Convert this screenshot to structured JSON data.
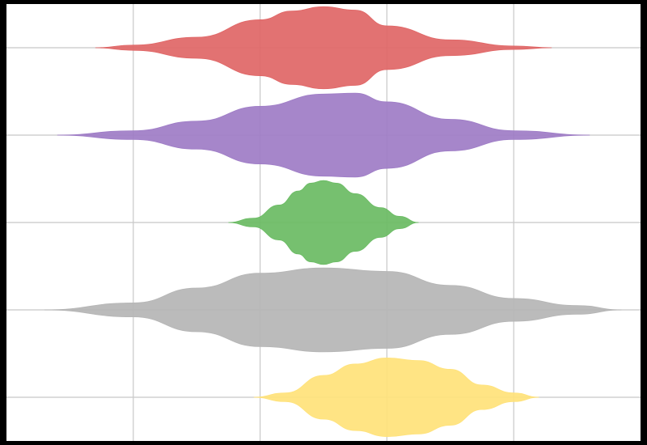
{
  "chart_data": {
    "type": "violin",
    "orientation": "horizontal",
    "title": "",
    "xlabel": "",
    "ylabel": "",
    "grid": true,
    "xlim": [
      -2.5,
      2.5
    ],
    "x_gridlines": [
      -1.5,
      -0.5,
      0.5,
      1.5
    ],
    "series": [
      {
        "color": "#e06666",
        "profile": [
          [
            -1.8,
            0.0
          ],
          [
            -1.5,
            0.03
          ],
          [
            -1.0,
            0.12
          ],
          [
            -0.5,
            0.32
          ],
          [
            -0.25,
            0.42
          ],
          [
            0.0,
            0.47
          ],
          [
            0.25,
            0.43
          ],
          [
            0.5,
            0.25
          ],
          [
            1.0,
            0.09
          ],
          [
            1.5,
            0.02
          ],
          [
            1.8,
            0.0
          ]
        ]
      },
      {
        "color": "#9e7cc6",
        "profile": [
          [
            -2.1,
            0.0
          ],
          [
            -1.5,
            0.05
          ],
          [
            -1.0,
            0.16
          ],
          [
            -0.5,
            0.33
          ],
          [
            0.0,
            0.47
          ],
          [
            0.25,
            0.48
          ],
          [
            0.5,
            0.38
          ],
          [
            1.0,
            0.18
          ],
          [
            1.5,
            0.05
          ],
          [
            2.1,
            0.0
          ]
        ]
      },
      {
        "color": "#6abb63",
        "profile": [
          [
            -0.75,
            0.0
          ],
          [
            -0.55,
            0.05
          ],
          [
            -0.35,
            0.2
          ],
          [
            -0.2,
            0.36
          ],
          [
            -0.1,
            0.45
          ],
          [
            0.0,
            0.48
          ],
          [
            0.1,
            0.45
          ],
          [
            0.25,
            0.33
          ],
          [
            0.45,
            0.17
          ],
          [
            0.6,
            0.07
          ],
          [
            0.75,
            0.0
          ]
        ]
      },
      {
        "color": "#b5b5b5",
        "profile": [
          [
            -2.2,
            0.0
          ],
          [
            -1.5,
            0.08
          ],
          [
            -1.0,
            0.25
          ],
          [
            -0.5,
            0.42
          ],
          [
            0.0,
            0.48
          ],
          [
            0.5,
            0.44
          ],
          [
            1.0,
            0.28
          ],
          [
            1.5,
            0.13
          ],
          [
            2.0,
            0.05
          ],
          [
            2.35,
            0.0
          ]
        ]
      },
      {
        "color": "#ffe27a",
        "profile": [
          [
            -0.55,
            0.0
          ],
          [
            -0.3,
            0.05
          ],
          [
            0.0,
            0.25
          ],
          [
            0.25,
            0.38
          ],
          [
            0.5,
            0.45
          ],
          [
            0.75,
            0.42
          ],
          [
            1.0,
            0.32
          ],
          [
            1.25,
            0.14
          ],
          [
            1.5,
            0.05
          ],
          [
            1.7,
            0.0
          ]
        ]
      }
    ]
  }
}
